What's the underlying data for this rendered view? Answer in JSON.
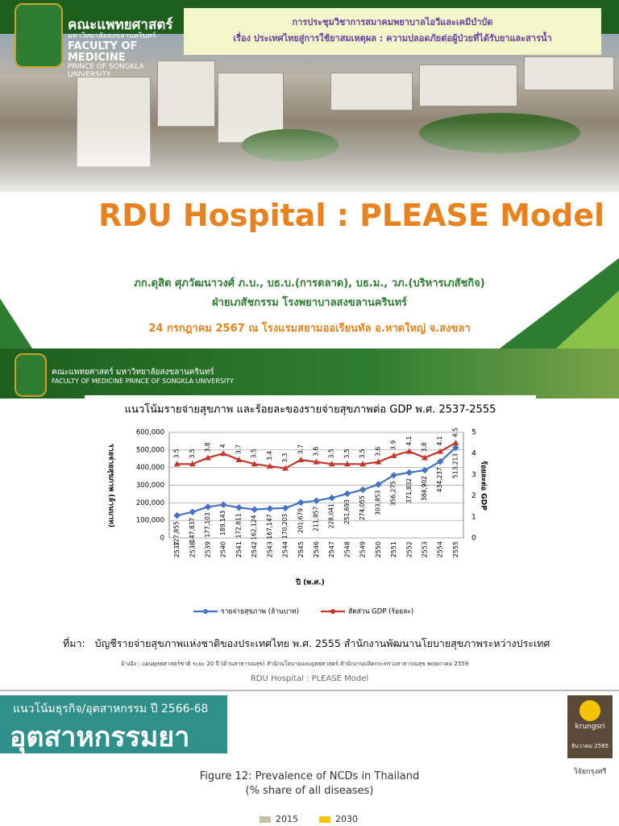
{
  "slide1": {
    "logo": [
      "คณะแพทยศาสตร์",
      "มหาวิทยาลัยสงขลานครินทร์",
      "FACULTY OF MEDICINE",
      "PRINCE OF SONGKLA UNIVERSITY"
    ],
    "banner": [
      "การประชุมวิชาการสมาคมพยาบาลไอวีและเคมีบำบัด",
      "เรื่อง ประเทศไทยสู่การใช้ยาสมเหตุผล : ความปลอดภัยต่อผู้ป่วยที่ได้รับยาและสารน้ำ"
    ],
    "title": "RDU Hospital : PLEASE Model",
    "presenter": [
      "ภก.ดุสิต ศุภวัฒนาวงศ์ ภ.บ., บธ.บ.(การตลาด), บธ.ม., วภ.(บริหารเภสัชกิจ)",
      "ฝ่ายเภสัชกรรม  โรงพยาบาลสงขลานครินทร์"
    ],
    "event": "24 กรกฎาคม 2567 ณ โรงแรมสยามออเรียนทัล อ.หาดใหญ่ จ.สงขลา"
  },
  "slide2": {
    "logo": [
      "คณะแพทยศาสตร์ มหาวิทยาลัยสงขลานครินทร์",
      "FACULTY OF MEDICINE PRINCE OF SONGKLA UNIVERSITY"
    ],
    "source_label": "ที่มา:",
    "source": "บัญชีรายจ่ายสุขภาพแห่งชาติของประเทศไทย พ.ศ. 2555 สำนักงานพัฒนานโยบายสุขภาพระหว่างประเทศ",
    "reference": "อ้างอิง : แผนยุทธศาสตร์ชาติ ระยะ 20 ปี (ด้านสาธารณสุข) สำนักนโยบายและยุทธศาสตร์ สำนักงานปลัดกระทรวงสาธารณสุข พฤษภาคม 2559",
    "footer": "RDU Hospital : PLEASE Model"
  },
  "chart_data": {
    "type": "line",
    "title": "แนวโน้มรายจ่ายสุขภาพ และร้อยละของรายจ่ายสุขภาพต่อ GDP พ.ศ. 2537-2555",
    "x_label": "ปี (พ.ศ.)",
    "y_label": "รายจ่ายสุขภาพ (ล้านบาท)",
    "y2_label": "ร้อยละต่อ GDP",
    "categories": [
      "2537",
      "2538",
      "2539",
      "2540",
      "2541",
      "2542",
      "2543",
      "2544",
      "2545",
      "2546",
      "2547",
      "2548",
      "2549",
      "2550",
      "2551",
      "2552",
      "2553",
      "2554",
      "2555"
    ],
    "series": [
      {
        "name": "รายจ่ายสุขภาพ (ล้านบาท)",
        "color": "#4472c4",
        "values": [
          127855,
          147837,
          177103,
          189143,
          172811,
          162124,
          167147,
          170203,
          201679,
          211957,
          228041,
          251693,
          274055,
          303853,
          356275,
          371832,
          384902,
          434237,
          513213
        ],
        "value_labels": [
          "127,855",
          "147,837",
          "177,103",
          "189,143",
          "172,811",
          "162,124",
          "167,147",
          "170,203",
          "201,679",
          "211,957",
          "228,041",
          "251,693",
          "274,055",
          "303,853",
          "356,275",
          "371,832",
          "384,902",
          "434,237",
          "513,213"
        ]
      },
      {
        "name": "สัดส่วน GDP (ร้อยละ)",
        "color": "#c0392b",
        "axis": "y2",
        "values": [
          3.5,
          3.5,
          3.8,
          4,
          3.7,
          3.5,
          3.4,
          3.3,
          3.7,
          3.6,
          3.5,
          3.5,
          3.5,
          3.6,
          3.9,
          4.1,
          3.8,
          4.1,
          4.5
        ]
      }
    ],
    "ylim": [
      0,
      600000
    ],
    "yticks": [
      0,
      {
        "value": 100000,
        "label": "100,000"
      },
      {
        "value": 200000,
        "label": "200,000"
      },
      {
        "value": 300000,
        "label": "300,000"
      },
      {
        "value": 400000,
        "label": "400,000"
      },
      {
        "value": 500000,
        "label": "500,000"
      },
      {
        "value": 600000,
        "label": "600,000"
      }
    ],
    "y2lim": [
      0,
      5
    ],
    "y2ticks": [
      0,
      1,
      2,
      3,
      4,
      5
    ],
    "grid": true,
    "legend": "bottom"
  },
  "slide3": {
    "kicker": "แนวโน้มธุรกิจ/อุตสาหกรรม ปี 2566-68",
    "title": "อุตสาหกรรมยา",
    "brand": [
      "krungsri",
      "ธันวาคม 2565",
      "วิจัยกรุงศรี"
    ],
    "figure_title": "Figure 12: Prevalence of NCDs in Thailand",
    "figure_subtitle": "(% share of all diseases)",
    "legend": [
      "2015",
      "2030"
    ]
  }
}
